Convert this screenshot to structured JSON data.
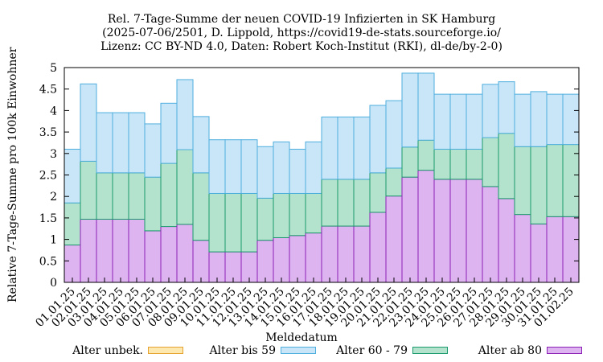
{
  "chart_data": {
    "type": "bar",
    "stacked": true,
    "title_lines": [
      "Rel. 7-Tage-Summe der neuen COVID-19 Infizierten in SK Hamburg",
      "(2025-07-06/2501, D. Lippold, https://covid19-de-stats.sourceforge.io/",
      "Lizenz: CC BY-ND 4.0, Daten: Robert Koch-Institut (RKI), dl-de/by-2-0)"
    ],
    "xlabel": "Meldedatum",
    "ylabel": "Relative 7-Tage-Summe pro 100k Einwohner",
    "ylim": [
      0,
      5
    ],
    "yticks": [
      "0",
      "0.5",
      "1",
      "1.5",
      "2",
      "2.5",
      "3",
      "3.5",
      "4",
      "4.5",
      "5"
    ],
    "grid": false,
    "legend_position": "bottom",
    "categories": [
      "01.01.25",
      "02.01.25",
      "03.01.25",
      "04.01.25",
      "05.01.25",
      "06.01.25",
      "07.01.25",
      "08.01.25",
      "09.01.25",
      "10.01.25",
      "11.01.25",
      "12.01.25",
      "13.01.25",
      "14.01.25",
      "15.01.25",
      "16.01.25",
      "17.01.25",
      "18.01.25",
      "19.01.25",
      "20.01.25",
      "21.01.25",
      "22.01.25",
      "23.01.25",
      "24.01.25",
      "25.01.25",
      "26.01.25",
      "27.01.25",
      "28.01.25",
      "29.01.25",
      "30.01.25",
      "31.01.25",
      "01.02.25"
    ],
    "series": [
      {
        "name": "Alter unbek.",
        "fill": "#fde8b0",
        "stroke": "#e6a22e",
        "values": [
          0,
          0,
          0,
          0,
          0,
          0,
          0,
          0,
          0,
          0,
          0,
          0,
          0,
          0,
          0,
          0,
          0,
          0,
          0,
          0,
          0,
          0,
          0,
          0,
          0,
          0,
          0,
          0,
          0,
          0,
          0,
          0
        ]
      },
      {
        "name": "Alter ab 80",
        "fill": "#ddb4f0",
        "stroke": "#8c1fb5",
        "values": [
          0.87,
          1.47,
          1.47,
          1.47,
          1.47,
          1.2,
          1.3,
          1.35,
          0.98,
          0.71,
          0.71,
          0.71,
          0.98,
          1.04,
          1.09,
          1.15,
          1.31,
          1.31,
          1.31,
          1.63,
          2.01,
          2.45,
          2.61,
          2.4,
          2.4,
          2.4,
          2.23,
          1.95,
          1.58,
          1.36,
          1.53,
          1.53
        ]
      },
      {
        "name": "Alter 60 - 79",
        "fill": "#b3e3cd",
        "stroke": "#1a9a6c",
        "values": [
          0.98,
          1.35,
          1.08,
          1.08,
          1.08,
          1.25,
          1.47,
          1.74,
          1.57,
          1.36,
          1.36,
          1.36,
          0.98,
          1.03,
          0.98,
          0.92,
          1.09,
          1.09,
          1.09,
          0.92,
          0.65,
          0.7,
          0.7,
          0.7,
          0.7,
          0.7,
          1.14,
          1.52,
          1.58,
          1.8,
          1.68,
          1.68
        ]
      },
      {
        "name": "Alter bis 59",
        "fill": "#c9e6f8",
        "stroke": "#4eaede",
        "values": [
          1.25,
          1.8,
          1.4,
          1.4,
          1.4,
          1.24,
          1.4,
          1.63,
          1.31,
          1.25,
          1.25,
          1.25,
          1.2,
          1.2,
          1.03,
          1.2,
          1.45,
          1.45,
          1.45,
          1.57,
          1.57,
          1.72,
          1.56,
          1.28,
          1.28,
          1.28,
          1.24,
          1.2,
          1.22,
          1.28,
          1.17,
          1.17
        ]
      }
    ],
    "legend_order": [
      "Alter unbek.",
      "Alter bis 59",
      "Alter 60 - 79",
      "Alter ab 80"
    ]
  }
}
